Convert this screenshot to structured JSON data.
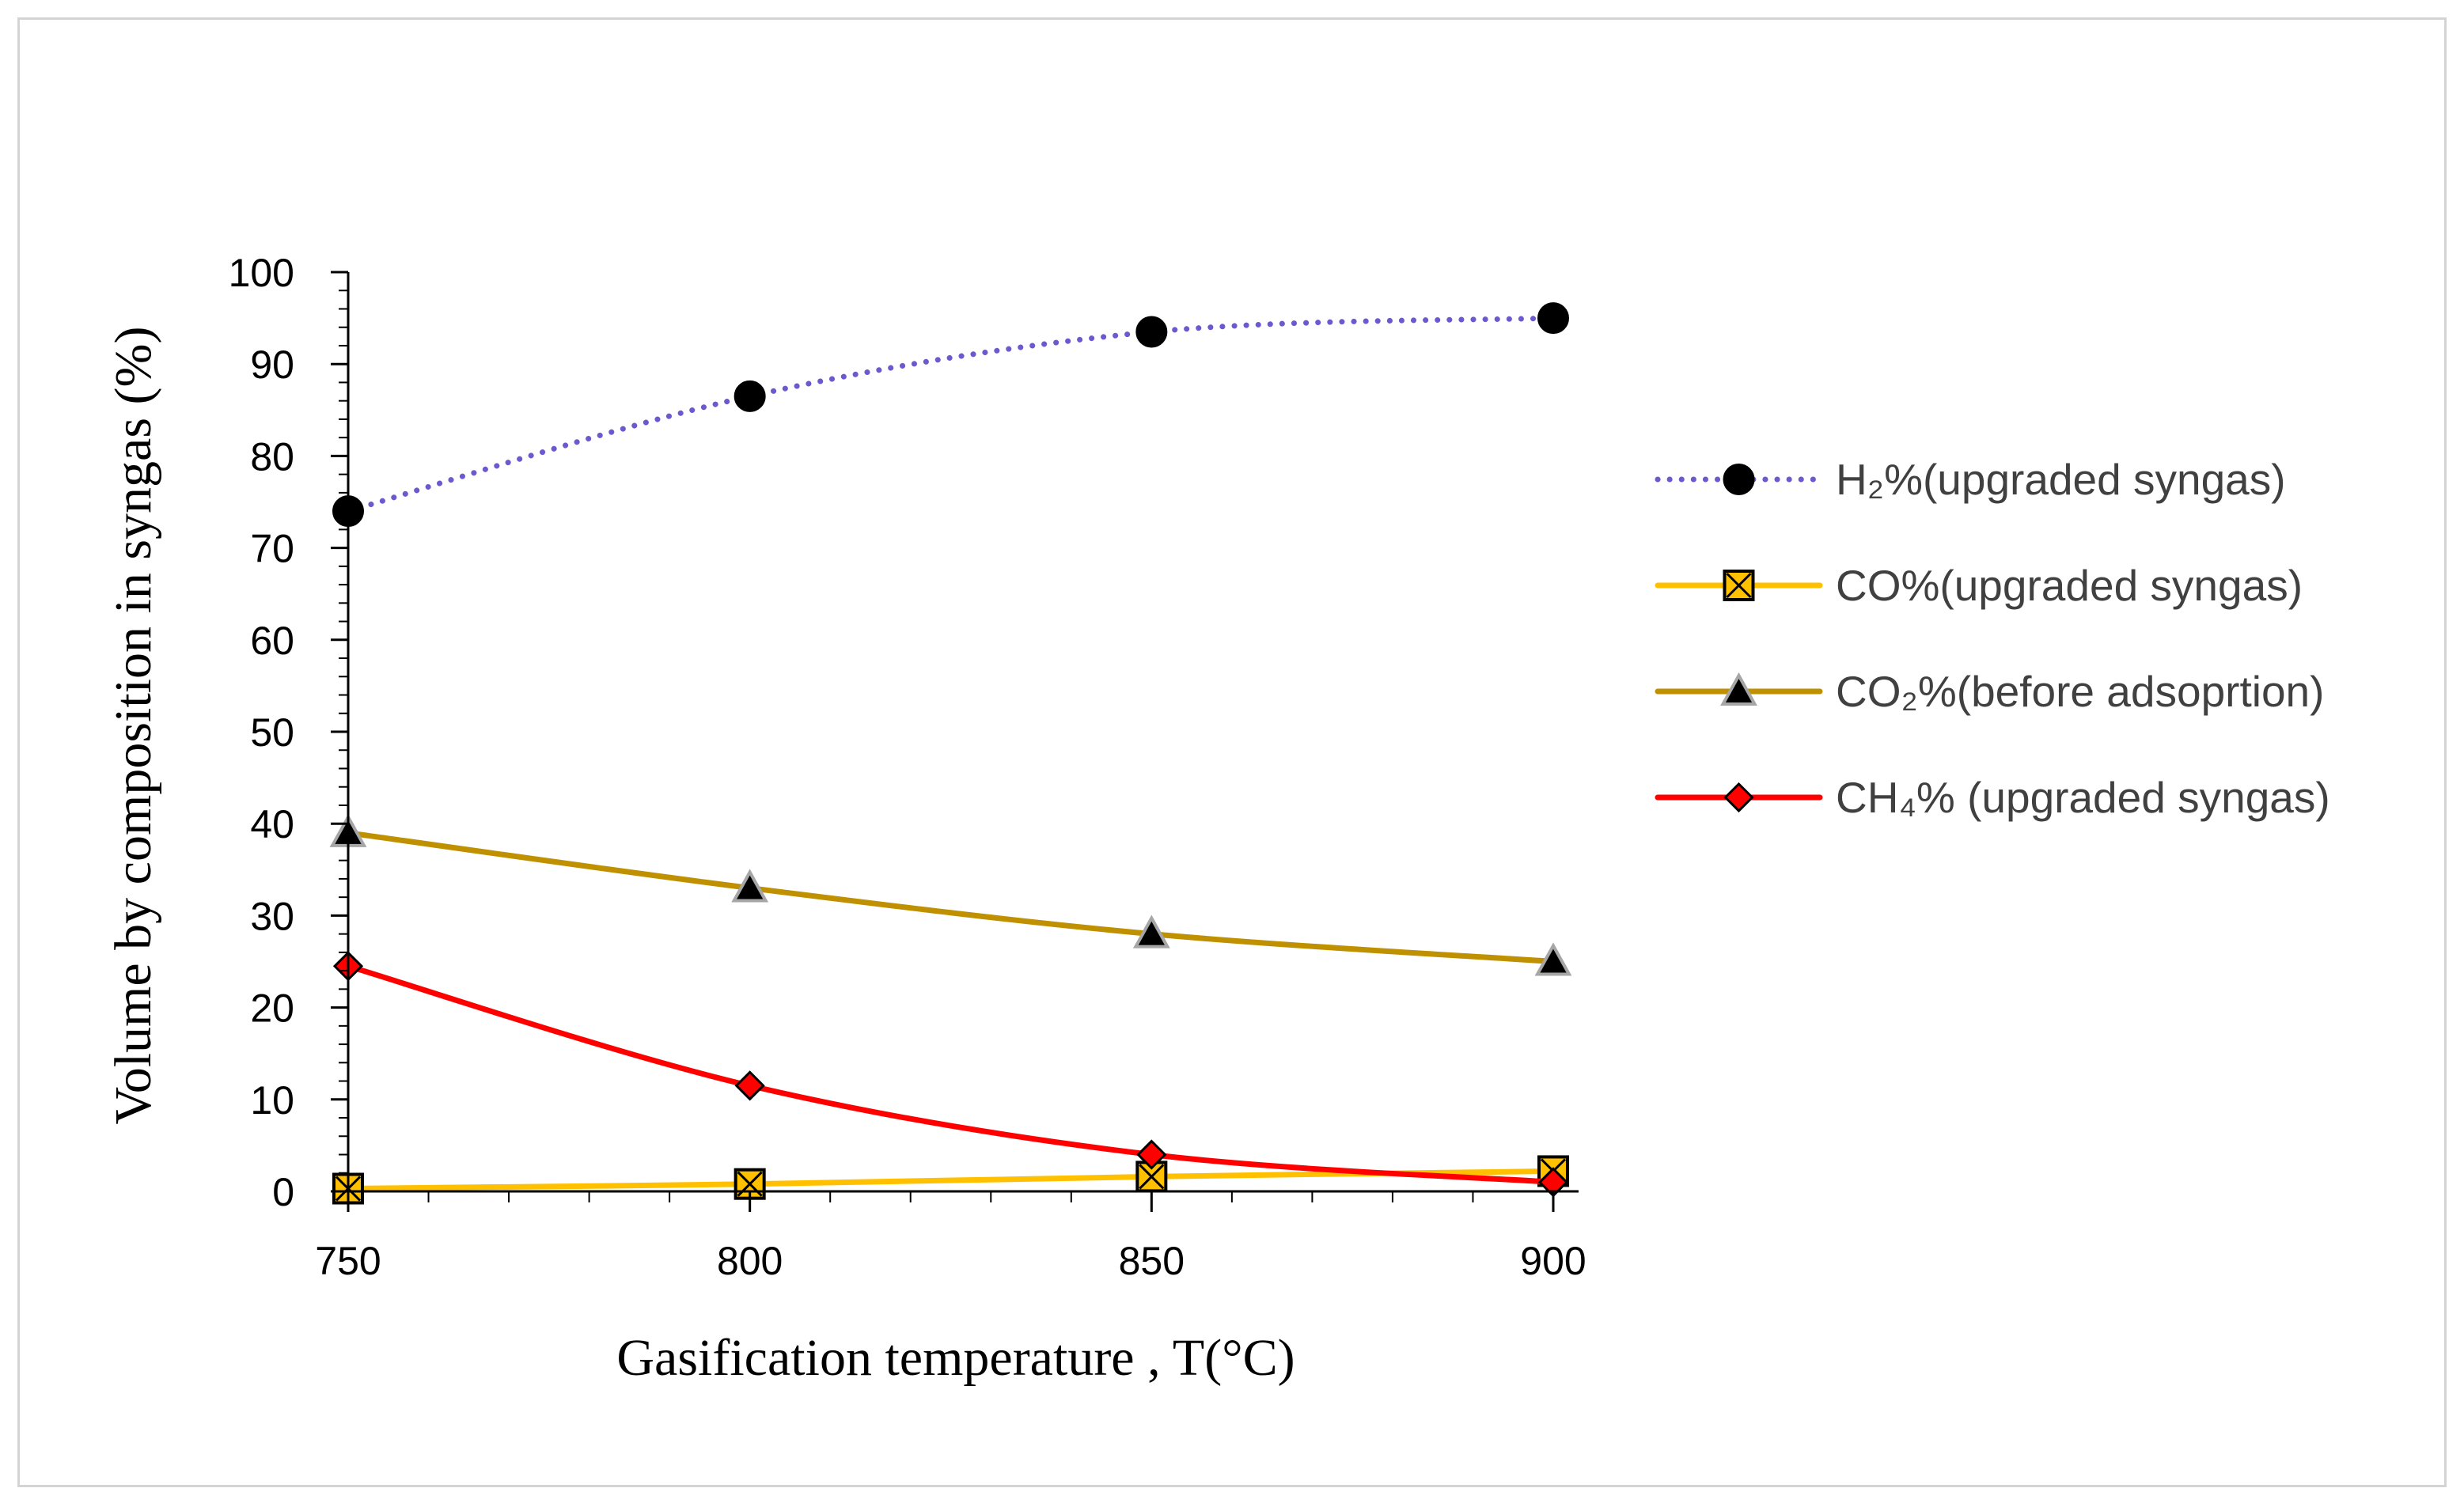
{
  "chart_data": {
    "type": "line",
    "title": "",
    "xlabel": "Gasification temperature , T(°C)",
    "ylabel": "Volume by composition in syngas (%)",
    "x": [
      750,
      800,
      850,
      900
    ],
    "xlim": [
      750,
      900
    ],
    "ylim": [
      0,
      100
    ],
    "xticks": [
      "750",
      "800",
      "850",
      "900"
    ],
    "yticks": [
      "0",
      "10",
      "20",
      "30",
      "40",
      "50",
      "60",
      "70",
      "80",
      "90",
      "100"
    ],
    "grid": false,
    "legend_position": "right",
    "series": [
      {
        "name": "H₂%(upgraded syngas)",
        "values": [
          74,
          86.5,
          93.5,
          95
        ],
        "color": "#6a5acd",
        "line_style": "dotted",
        "marker": "circle",
        "marker_fill": "#000000"
      },
      {
        "name": "CO%(upgraded syngas)",
        "values": [
          0.3,
          0.8,
          1.6,
          2.2
        ],
        "color": "#ffc000",
        "line_style": "solid",
        "marker": "x-square",
        "marker_fill": "#ffc000"
      },
      {
        "name": "CO₂%(before adsoprtion)",
        "values": [
          39,
          33,
          28,
          25
        ],
        "color": "#bf9000",
        "line_style": "solid",
        "marker": "triangle",
        "marker_fill": "#000000"
      },
      {
        "name": "CH₄% (upgraded syngas)",
        "values": [
          24.5,
          11.5,
          4,
          1
        ],
        "color": "#ff0000",
        "line_style": "solid",
        "marker": "diamond",
        "marker_fill": "#ff0000"
      }
    ]
  }
}
